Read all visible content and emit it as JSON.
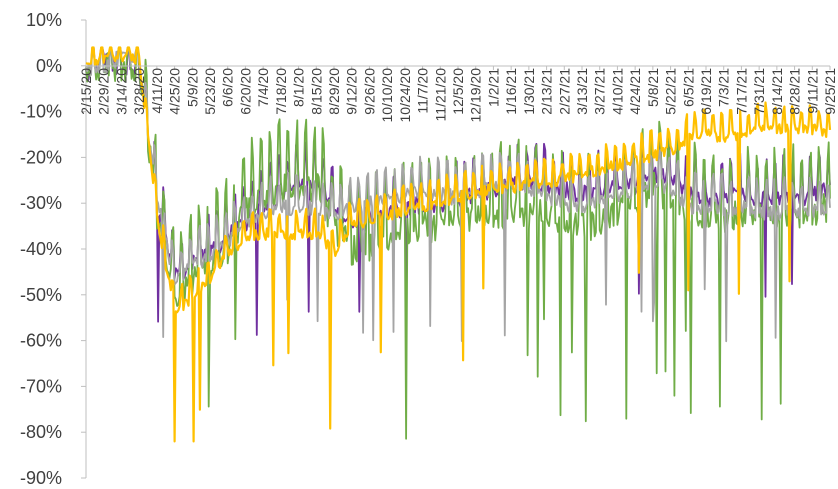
{
  "chart_data": {
    "type": "line",
    "title": "",
    "xlabel": "",
    "ylabel": "",
    "ylim": [
      -90,
      10
    ],
    "yticks": [
      "10%",
      "0%",
      "-10%",
      "-20%",
      "-30%",
      "-40%",
      "-50%",
      "-60%",
      "-70%",
      "-80%",
      "-90%"
    ],
    "x_tick_labels": [
      "2/15/20",
      "2/29/20",
      "3/14/20",
      "3/28/20",
      "4/11/20",
      "4/25/20",
      "5/9/20",
      "5/23/20",
      "6/6/20",
      "6/20/20",
      "7/4/20",
      "7/18/20",
      "8/1/20",
      "8/15/20",
      "8/29/20",
      "9/12/20",
      "9/26/20",
      "10/10/20",
      "10/24/20",
      "11/7/20",
      "11/21/20",
      "12/5/20",
      "12/19/20",
      "1/2/21",
      "1/16/21",
      "1/30/21",
      "2/13/21",
      "2/27/21",
      "3/13/21",
      "3/27/21",
      "4/10/21",
      "4/24/21",
      "5/8/21",
      "5/22/21",
      "6/5/21",
      "6/19/21",
      "7/3/21",
      "7/17/21",
      "7/31/21",
      "8/14/21",
      "8/28/21",
      "9/11/21",
      "9/25/21"
    ],
    "legend": "none",
    "grid": false,
    "series_colors": [
      "#7030a0",
      "#70ad47",
      "#a5a5a5",
      "#ffc000"
    ],
    "series": [
      {
        "values": [
          -1,
          2,
          1,
          0,
          -28,
          -45,
          -42,
          -40,
          -36,
          -33,
          -30,
          -27,
          -25,
          -24,
          -30,
          -35,
          -32,
          -31,
          -30,
          -29,
          -29,
          -28,
          -27,
          -26,
          -25,
          -24,
          -25,
          -26,
          -27,
          -26,
          -25,
          -25,
          -22,
          -24,
          -26,
          -28,
          -28,
          -27,
          -28,
          -27,
          -28,
          -27,
          -26
        ]
      },
      {
        "values": [
          0,
          2,
          2,
          1,
          -30,
          -48,
          -45,
          -42,
          -38,
          -30,
          -27,
          -25,
          -25,
          -24,
          -33,
          -38,
          -37,
          -35,
          -34,
          -33,
          -33,
          -33,
          -32,
          -31,
          -30,
          -30,
          -31,
          -32,
          -33,
          -32,
          -30,
          -28,
          -24,
          -28,
          -29,
          -30,
          -31,
          -30,
          -30,
          -31,
          -31,
          -30,
          -29
        ]
      },
      {
        "values": [
          0,
          1,
          3,
          2,
          -28,
          -46,
          -43,
          -40,
          -37,
          -34,
          -32,
          -30,
          -30,
          -30,
          -32,
          -30,
          -29,
          -28,
          -27,
          -26,
          -27,
          -28,
          -26,
          -26,
          -25,
          -26,
          -28,
          -29,
          -30,
          -29,
          -27,
          -26,
          -24,
          -26,
          -30,
          -30,
          -30,
          -30,
          -31,
          -31,
          -31,
          -31,
          -31
        ]
      },
      {
        "values": [
          1,
          2,
          3,
          2,
          -32,
          -53,
          -50,
          -46,
          -40,
          -37,
          -36,
          -36,
          -36,
          -36,
          -40,
          -34,
          -33,
          -32,
          -31,
          -30,
          -29,
          -28,
          -27,
          -26,
          -26,
          -25,
          -25,
          -24,
          -23,
          -22,
          -21,
          -20,
          -19,
          -18,
          -15,
          -14,
          -15,
          -14,
          -13,
          -13,
          -13,
          -13,
          -14
        ]
      }
    ]
  }
}
